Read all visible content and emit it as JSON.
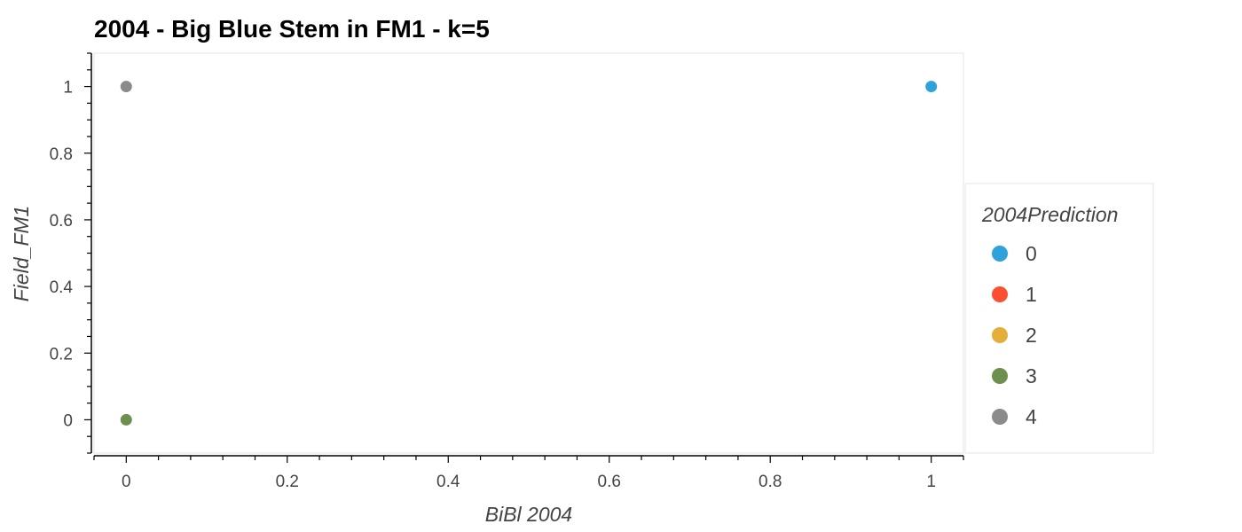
{
  "chart_data": {
    "type": "scatter",
    "title": "2004 - Big Blue Stem in FM1 - k=5",
    "xlabel": "BiBl 2004",
    "ylabel": "Field_FM1",
    "xlim": [
      -0.04,
      1.04
    ],
    "ylim": [
      -0.1,
      1.1
    ],
    "x_ticks": [
      "0",
      "0.2",
      "0.4",
      "0.6",
      "0.8",
      "1"
    ],
    "y_ticks": [
      "0",
      "0.2",
      "0.4",
      "0.6",
      "0.8",
      "1"
    ],
    "grid": false,
    "legend": {
      "title": "2004Prediction",
      "placement": "right",
      "entries": [
        {
          "label": "0",
          "color": "#30a2da"
        },
        {
          "label": "1",
          "color": "#fc4f30"
        },
        {
          "label": "2",
          "color": "#e5ae38"
        },
        {
          "label": "3",
          "color": "#6d904f"
        },
        {
          "label": "4",
          "color": "#8b8b8b"
        }
      ]
    },
    "series": [
      {
        "name": "0",
        "color": "#30a2da",
        "points": [
          {
            "x": 1,
            "y": 1
          }
        ]
      },
      {
        "name": "1",
        "color": "#fc4f30",
        "points": []
      },
      {
        "name": "2",
        "color": "#e5ae38",
        "points": []
      },
      {
        "name": "3",
        "color": "#6d904f",
        "points": [
          {
            "x": 0,
            "y": 0
          }
        ]
      },
      {
        "name": "4",
        "color": "#8b8b8b",
        "points": [
          {
            "x": 0,
            "y": 1
          }
        ]
      }
    ]
  }
}
